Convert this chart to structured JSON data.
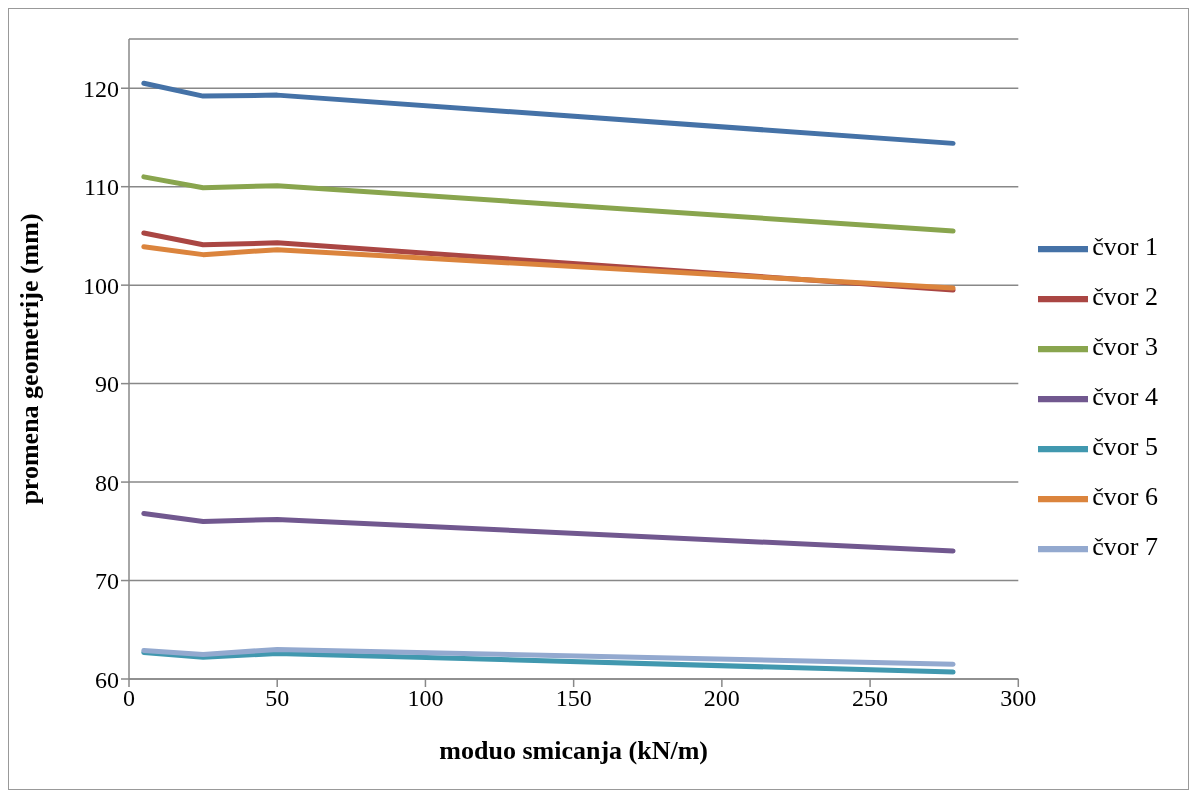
{
  "chart_data": {
    "type": "line",
    "xlabel": "moduo smicanja (kN/m)",
    "ylabel": "promena geometrije (mm)",
    "x": [
      5,
      25,
      50,
      278
    ],
    "series": [
      {
        "name": "čvor 1",
        "color": "#4572a7",
        "values": [
          120.5,
          119.2,
          119.3,
          114.4
        ]
      },
      {
        "name": "čvor 2",
        "color": "#aa4643",
        "values": [
          105.3,
          104.1,
          104.3,
          99.5
        ]
      },
      {
        "name": "čvor 3",
        "color": "#89a54e",
        "values": [
          111.0,
          109.9,
          110.1,
          105.5
        ]
      },
      {
        "name": "čvor 4",
        "color": "#71588f",
        "values": [
          76.8,
          76.0,
          76.2,
          73.0
        ]
      },
      {
        "name": "čvor 5",
        "color": "#4198af",
        "values": [
          62.7,
          62.2,
          62.6,
          60.7
        ]
      },
      {
        "name": "čvor 6",
        "color": "#db843d",
        "values": [
          103.9,
          103.1,
          103.6,
          99.7
        ]
      },
      {
        "name": "čvor 7",
        "color": "#93a9cf",
        "values": [
          62.9,
          62.5,
          63.0,
          61.5
        ]
      }
    ],
    "xlim": [
      0,
      300
    ],
    "xticks": [
      0,
      50,
      100,
      150,
      200,
      250,
      300
    ],
    "ylim": [
      60,
      125
    ],
    "yticks": [
      60,
      70,
      80,
      90,
      100,
      110,
      120
    ],
    "grid": "y",
    "legend": "right",
    "marker": "none",
    "line_style": "solid"
  }
}
